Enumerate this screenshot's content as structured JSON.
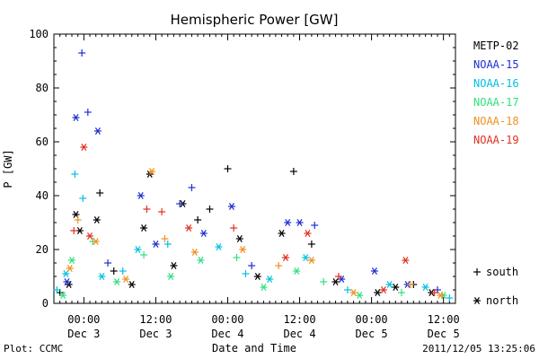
{
  "footer": {
    "plot_credit": "Plot: CCMC",
    "timestamp": "2011/12/05 13:25:06"
  },
  "chart_data": {
    "type": "scatter",
    "title": "Hemispheric Power [GW]",
    "xlabel": "Date and Time",
    "ylabel": "P [GW]",
    "ylim": [
      0,
      100
    ],
    "y_ticks": [
      "0",
      "20",
      "40",
      "60",
      "80",
      "100"
    ],
    "xlim": [
      "2011-12-02T19:00",
      "2011-12-05T14:00"
    ],
    "x_ticks": [
      {
        "time": "2011-12-03T00:00",
        "line1": "00:00",
        "line2": "Dec 3"
      },
      {
        "time": "2011-12-03T12:00",
        "line1": "12:00",
        "line2": "Dec 3"
      },
      {
        "time": "2011-12-04T00:00",
        "line1": "00:00",
        "line2": "Dec 4"
      },
      {
        "time": "2011-12-04T12:00",
        "line1": "12:00",
        "line2": "Dec 4"
      },
      {
        "time": "2011-12-05T00:00",
        "line1": "00:00",
        "line2": "Dec 5"
      },
      {
        "time": "2011-12-05T12:00",
        "line1": "12:00",
        "line2": "Dec 5"
      }
    ],
    "legend_position": "right",
    "marker_legend": [
      {
        "symbol": "+",
        "label": "south"
      },
      {
        "symbol": "*",
        "label": "north"
      }
    ],
    "series": [
      {
        "name": "METP-02",
        "color": "#000000",
        "points": [
          {
            "t": "2011-12-02T20:00",
            "v": 4,
            "h": "south"
          },
          {
            "t": "2011-12-02T21:30",
            "v": 7,
            "h": "north"
          },
          {
            "t": "2011-12-02T22:40",
            "v": 33,
            "h": "north"
          },
          {
            "t": "2011-12-02T23:20",
            "v": 27,
            "h": "north"
          },
          {
            "t": "2011-12-03T02:10",
            "v": 31,
            "h": "north"
          },
          {
            "t": "2011-12-03T02:40",
            "v": 41,
            "h": "south"
          },
          {
            "t": "2011-12-03T05:00",
            "v": 12,
            "h": "south"
          },
          {
            "t": "2011-12-03T08:00",
            "v": 7,
            "h": "north"
          },
          {
            "t": "2011-12-03T10:00",
            "v": 28,
            "h": "north"
          },
          {
            "t": "2011-12-03T11:00",
            "v": 48,
            "h": "north"
          },
          {
            "t": "2011-12-03T15:00",
            "v": 14,
            "h": "north"
          },
          {
            "t": "2011-12-03T16:30",
            "v": 37,
            "h": "north"
          },
          {
            "t": "2011-12-03T19:00",
            "v": 31,
            "h": "south"
          },
          {
            "t": "2011-12-03T21:00",
            "v": 35,
            "h": "south"
          },
          {
            "t": "2011-12-04T00:00",
            "v": 50,
            "h": "south"
          },
          {
            "t": "2011-12-04T02:00",
            "v": 24,
            "h": "north"
          },
          {
            "t": "2011-12-04T05:00",
            "v": 10,
            "h": "north"
          },
          {
            "t": "2011-12-04T09:00",
            "v": 26,
            "h": "north"
          },
          {
            "t": "2011-12-04T11:00",
            "v": 49,
            "h": "south"
          },
          {
            "t": "2011-12-04T14:00",
            "v": 22,
            "h": "south"
          },
          {
            "t": "2011-12-04T18:00",
            "v": 8,
            "h": "north"
          },
          {
            "t": "2011-12-05T01:00",
            "v": 4,
            "h": "north"
          },
          {
            "t": "2011-12-05T04:00",
            "v": 6,
            "h": "north"
          },
          {
            "t": "2011-12-05T07:00",
            "v": 7,
            "h": "south"
          },
          {
            "t": "2011-12-05T10:00",
            "v": 4,
            "h": "north"
          }
        ]
      },
      {
        "name": "NOAA-15",
        "color": "#1f2fd0",
        "points": [
          {
            "t": "2011-12-02T22:40",
            "v": 69,
            "h": "north"
          },
          {
            "t": "2011-12-02T23:40",
            "v": 93,
            "h": "south"
          },
          {
            "t": "2011-12-03T00:40",
            "v": 71,
            "h": "south"
          },
          {
            "t": "2011-12-03T02:20",
            "v": 64,
            "h": "north"
          },
          {
            "t": "2011-12-02T21:10",
            "v": 8,
            "h": "north"
          },
          {
            "t": "2011-12-03T04:00",
            "v": 15,
            "h": "south"
          },
          {
            "t": "2011-12-03T09:30",
            "v": 40,
            "h": "north"
          },
          {
            "t": "2011-12-03T12:00",
            "v": 22,
            "h": "north"
          },
          {
            "t": "2011-12-03T16:00",
            "v": 37,
            "h": "south"
          },
          {
            "t": "2011-12-03T18:00",
            "v": 43,
            "h": "south"
          },
          {
            "t": "2011-12-03T20:00",
            "v": 26,
            "h": "north"
          },
          {
            "t": "2011-12-04T00:40",
            "v": 36,
            "h": "north"
          },
          {
            "t": "2011-12-04T04:00",
            "v": 14,
            "h": "south"
          },
          {
            "t": "2011-12-04T10:00",
            "v": 30,
            "h": "north"
          },
          {
            "t": "2011-12-04T12:00",
            "v": 30,
            "h": "north"
          },
          {
            "t": "2011-12-04T14:30",
            "v": 29,
            "h": "south"
          },
          {
            "t": "2011-12-04T19:00",
            "v": 9,
            "h": "north"
          },
          {
            "t": "2011-12-05T00:30",
            "v": 12,
            "h": "north"
          },
          {
            "t": "2011-12-05T06:00",
            "v": 7,
            "h": "north"
          },
          {
            "t": "2011-12-05T11:00",
            "v": 5,
            "h": "south"
          }
        ]
      },
      {
        "name": "NOAA-16",
        "color": "#00c0e0",
        "points": [
          {
            "t": "2011-12-02T19:30",
            "v": 5,
            "h": "south"
          },
          {
            "t": "2011-12-02T21:00",
            "v": 11,
            "h": "north"
          },
          {
            "t": "2011-12-02T22:30",
            "v": 48,
            "h": "south"
          },
          {
            "t": "2011-12-02T23:50",
            "v": 39,
            "h": "south"
          },
          {
            "t": "2011-12-03T03:00",
            "v": 10,
            "h": "north"
          },
          {
            "t": "2011-12-03T06:30",
            "v": 12,
            "h": "south"
          },
          {
            "t": "2011-12-03T09:00",
            "v": 20,
            "h": "north"
          },
          {
            "t": "2011-12-03T14:00",
            "v": 22,
            "h": "south"
          },
          {
            "t": "2011-12-03T22:30",
            "v": 21,
            "h": "north"
          },
          {
            "t": "2011-12-04T03:00",
            "v": 11,
            "h": "south"
          },
          {
            "t": "2011-12-04T07:00",
            "v": 9,
            "h": "north"
          },
          {
            "t": "2011-12-04T13:00",
            "v": 17,
            "h": "north"
          },
          {
            "t": "2011-12-04T20:00",
            "v": 5,
            "h": "south"
          },
          {
            "t": "2011-12-05T03:00",
            "v": 7,
            "h": "north"
          },
          {
            "t": "2011-12-05T09:00",
            "v": 6,
            "h": "north"
          },
          {
            "t": "2011-12-05T13:00",
            "v": 2,
            "h": "south"
          }
        ]
      },
      {
        "name": "NOAA-17",
        "color": "#30e080",
        "points": [
          {
            "t": "2011-12-02T20:30",
            "v": 3,
            "h": "north"
          },
          {
            "t": "2011-12-02T22:00",
            "v": 16,
            "h": "north"
          },
          {
            "t": "2011-12-03T01:30",
            "v": 23,
            "h": "south"
          },
          {
            "t": "2011-12-03T05:30",
            "v": 8,
            "h": "north"
          },
          {
            "t": "2011-12-03T10:00",
            "v": 18,
            "h": "south"
          },
          {
            "t": "2011-12-03T14:30",
            "v": 10,
            "h": "north"
          },
          {
            "t": "2011-12-03T19:30",
            "v": 16,
            "h": "north"
          },
          {
            "t": "2011-12-04T01:30",
            "v": 17,
            "h": "south"
          },
          {
            "t": "2011-12-04T06:00",
            "v": 6,
            "h": "north"
          },
          {
            "t": "2011-12-04T11:30",
            "v": 12,
            "h": "north"
          },
          {
            "t": "2011-12-04T16:00",
            "v": 8,
            "h": "south"
          },
          {
            "t": "2011-12-04T22:00",
            "v": 3,
            "h": "north"
          },
          {
            "t": "2011-12-05T05:00",
            "v": 4,
            "h": "south"
          },
          {
            "t": "2011-12-05T12:00",
            "v": 3,
            "h": "north"
          }
        ]
      },
      {
        "name": "NOAA-18",
        "color": "#f09020",
        "points": [
          {
            "t": "2011-12-02T21:40",
            "v": 13,
            "h": "north"
          },
          {
            "t": "2011-12-02T23:00",
            "v": 31,
            "h": "south"
          },
          {
            "t": "2011-12-03T02:00",
            "v": 23,
            "h": "north"
          },
          {
            "t": "2011-12-03T07:00",
            "v": 9,
            "h": "north"
          },
          {
            "t": "2011-12-03T11:20",
            "v": 49,
            "h": "north"
          },
          {
            "t": "2011-12-03T13:30",
            "v": 24,
            "h": "south"
          },
          {
            "t": "2011-12-03T18:30",
            "v": 19,
            "h": "north"
          },
          {
            "t": "2011-12-04T02:30",
            "v": 20,
            "h": "north"
          },
          {
            "t": "2011-12-04T08:30",
            "v": 14,
            "h": "south"
          },
          {
            "t": "2011-12-04T14:00",
            "v": 16,
            "h": "north"
          },
          {
            "t": "2011-12-04T21:00",
            "v": 4,
            "h": "north"
          },
          {
            "t": "2011-12-05T06:30",
            "v": 7,
            "h": "south"
          },
          {
            "t": "2011-12-05T11:30",
            "v": 3,
            "h": "north"
          }
        ]
      },
      {
        "name": "NOAA-19",
        "color": "#e03020",
        "points": [
          {
            "t": "2011-12-02T22:20",
            "v": 27,
            "h": "south"
          },
          {
            "t": "2011-12-03T00:00",
            "v": 58,
            "h": "north"
          },
          {
            "t": "2011-12-03T01:00",
            "v": 25,
            "h": "north"
          },
          {
            "t": "2011-12-03T10:30",
            "v": 35,
            "h": "south"
          },
          {
            "t": "2011-12-03T13:00",
            "v": 34,
            "h": "south"
          },
          {
            "t": "2011-12-03T17:30",
            "v": 28,
            "h": "north"
          },
          {
            "t": "2011-12-04T01:00",
            "v": 28,
            "h": "south"
          },
          {
            "t": "2011-12-04T09:40",
            "v": 17,
            "h": "north"
          },
          {
            "t": "2011-12-04T13:20",
            "v": 26,
            "h": "north"
          },
          {
            "t": "2011-12-04T18:30",
            "v": 10,
            "h": "south"
          },
          {
            "t": "2011-12-05T02:00",
            "v": 5,
            "h": "north"
          },
          {
            "t": "2011-12-05T05:40",
            "v": 16,
            "h": "north"
          },
          {
            "t": "2011-12-05T10:30",
            "v": 4,
            "h": "south"
          }
        ]
      }
    ]
  }
}
